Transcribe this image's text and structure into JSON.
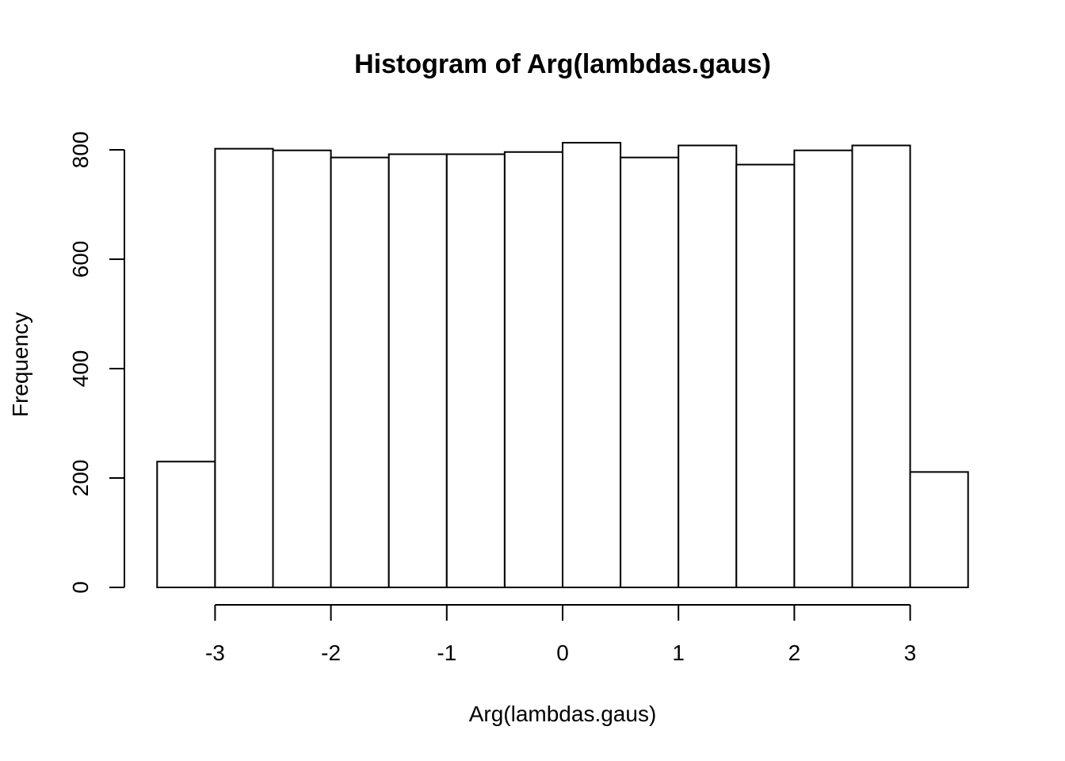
{
  "chart_data": {
    "type": "bar",
    "title": "Histogram of Arg(lambdas.gaus)",
    "xlabel": "Arg(lambdas.gaus)",
    "ylabel": "Frequency",
    "bin_width": 0.5,
    "bins": [
      {
        "start": -3.5,
        "end": -3.0,
        "count": 230
      },
      {
        "start": -3.0,
        "end": -2.5,
        "count": 802
      },
      {
        "start": -2.5,
        "end": -2.0,
        "count": 799
      },
      {
        "start": -2.0,
        "end": -1.5,
        "count": 786
      },
      {
        "start": -1.5,
        "end": -1.0,
        "count": 792
      },
      {
        "start": -1.0,
        "end": -0.5,
        "count": 792
      },
      {
        "start": -0.5,
        "end": 0.0,
        "count": 796
      },
      {
        "start": 0.0,
        "end": 0.5,
        "count": 813
      },
      {
        "start": 0.5,
        "end": 1.0,
        "count": 786
      },
      {
        "start": 1.0,
        "end": 1.5,
        "count": 808
      },
      {
        "start": 1.5,
        "end": 2.0,
        "count": 773
      },
      {
        "start": 2.0,
        "end": 2.5,
        "count": 799
      },
      {
        "start": 2.5,
        "end": 3.0,
        "count": 808
      },
      {
        "start": 3.0,
        "end": 3.5,
        "count": 211
      }
    ],
    "x_ticks": [
      "-3",
      "-2",
      "-1",
      "0",
      "1",
      "2",
      "3"
    ],
    "y_ticks": [
      "0",
      "200",
      "400",
      "600",
      "800"
    ],
    "xlim": [
      -3.5,
      3.5
    ],
    "ylim": [
      0,
      800
    ],
    "grid": false,
    "legend": false
  }
}
